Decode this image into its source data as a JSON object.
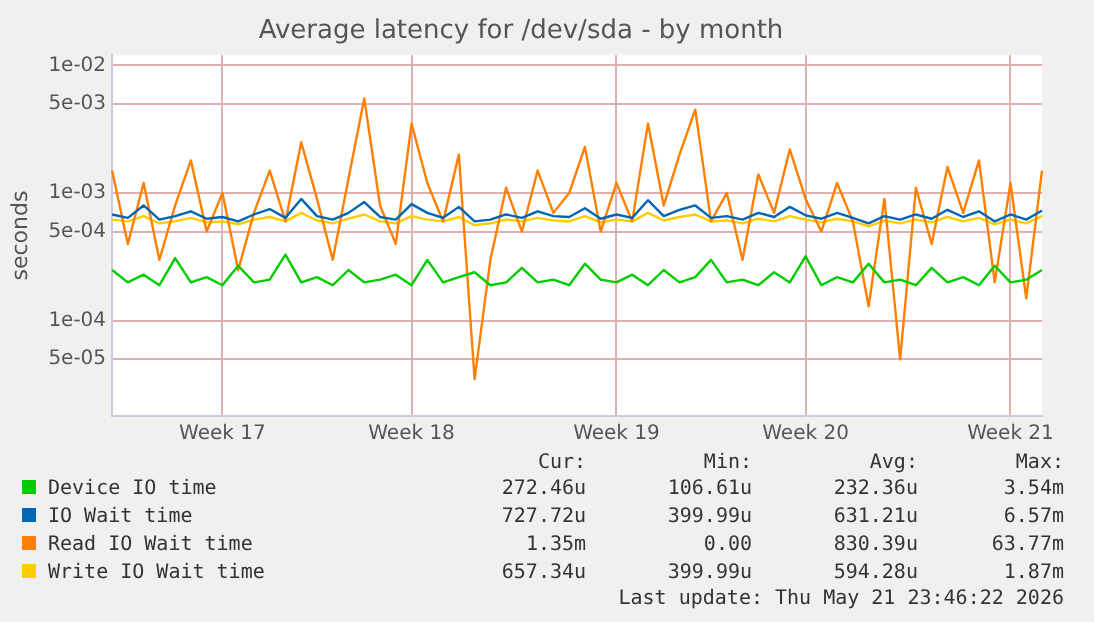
{
  "chart_data": {
    "type": "line",
    "title": "Average latency for /dev/sda - by month",
    "ylabel": "seconds",
    "log": "y",
    "grid": true,
    "legend": "bottom",
    "marker": "none",
    "line_style": "solid",
    "categories": [
      null,
      null,
      null,
      null,
      null,
      null,
      null,
      "Week 17",
      null,
      null,
      null,
      null,
      null,
      null,
      null,
      null,
      null,
      null,
      null,
      "Week 18",
      null,
      null,
      null,
      null,
      null,
      null,
      null,
      null,
      null,
      null,
      null,
      null,
      "Week 19",
      null,
      null,
      null,
      null,
      null,
      null,
      null,
      null,
      null,
      null,
      null,
      "Week 20",
      null,
      null,
      null,
      null,
      null,
      null,
      null,
      null,
      null,
      null,
      null,
      null,
      "Week 21",
      null,
      null
    ],
    "ylim": [
      1.8e-05,
      0.012
    ],
    "yticks": [
      {
        "value": 5e-05,
        "label": "5e-05"
      },
      {
        "value": 0.0001,
        "label": "1e-04"
      },
      {
        "value": 0.0005,
        "label": "5e-04"
      },
      {
        "value": 0.001,
        "label": "1e-03"
      },
      {
        "value": 0.005,
        "label": "5e-03"
      },
      {
        "value": 0.01,
        "label": "1e-02"
      }
    ],
    "series": [
      {
        "name": "Device IO time",
        "color": "#00cc00",
        "values": [
          0.00025,
          0.0002,
          0.00023,
          0.00019,
          0.00031,
          0.0002,
          0.00022,
          0.00019,
          0.00027,
          0.0002,
          0.00021,
          0.00033,
          0.0002,
          0.00022,
          0.00019,
          0.00025,
          0.0002,
          0.00021,
          0.00023,
          0.00019,
          0.0003,
          0.0002,
          0.00022,
          0.00024,
          0.00019,
          0.0002,
          0.00026,
          0.0002,
          0.00021,
          0.00019,
          0.00028,
          0.00021,
          0.0002,
          0.00023,
          0.00019,
          0.00025,
          0.0002,
          0.00022,
          0.0003,
          0.0002,
          0.00021,
          0.00019,
          0.00024,
          0.0002,
          0.00032,
          0.00019,
          0.00022,
          0.0002,
          0.00028,
          0.0002,
          0.00021,
          0.00019,
          0.00026,
          0.0002,
          0.00022,
          0.00019,
          0.00027,
          0.0002,
          0.00021,
          0.00025
        ]
      },
      {
        "name": "IO Wait time",
        "color": "#0066b3",
        "values": [
          0.00068,
          0.00064,
          0.0008,
          0.00062,
          0.00066,
          0.00072,
          0.00063,
          0.00065,
          0.0006,
          0.00068,
          0.00075,
          0.00064,
          0.0009,
          0.00066,
          0.00062,
          0.0007,
          0.00085,
          0.00065,
          0.00062,
          0.00082,
          0.0007,
          0.00064,
          0.00078,
          0.0006,
          0.00062,
          0.00068,
          0.00064,
          0.00072,
          0.00066,
          0.00065,
          0.00076,
          0.00063,
          0.00068,
          0.00064,
          0.00088,
          0.00066,
          0.00074,
          0.0008,
          0.00064,
          0.00066,
          0.00062,
          0.0007,
          0.00065,
          0.00078,
          0.00067,
          0.00063,
          0.0007,
          0.00064,
          0.00058,
          0.00066,
          0.00062,
          0.00068,
          0.00063,
          0.00074,
          0.00065,
          0.00072,
          0.0006,
          0.00068,
          0.00062,
          0.00073
        ]
      },
      {
        "name": "Read IO Wait time",
        "color": "#ff8000",
        "values": [
          0.0015,
          0.0004,
          0.0012,
          0.0003,
          0.0008,
          0.0018,
          0.0005,
          0.001,
          0.00025,
          0.0007,
          0.0015,
          0.0006,
          0.0025,
          0.0009,
          0.0003,
          0.0013,
          0.0055,
          0.0008,
          0.0004,
          0.0035,
          0.0012,
          0.0006,
          0.002,
          3.5e-05,
          0.0003,
          0.0011,
          0.0005,
          0.0015,
          0.0007,
          0.001,
          0.0023,
          0.0005,
          0.0012,
          0.0006,
          0.0035,
          0.0008,
          0.002,
          0.0045,
          0.0006,
          0.001,
          0.0003,
          0.0014,
          0.0007,
          0.0022,
          0.0009,
          0.0005,
          0.0012,
          0.0006,
          0.00013,
          0.0009,
          5e-05,
          0.0011,
          0.0004,
          0.0016,
          0.0007,
          0.0018,
          0.0002,
          0.0012,
          0.00015,
          0.0015
        ]
      },
      {
        "name": "Write IO Wait time",
        "color": "#ffcc00",
        "values": [
          0.00062,
          0.0006,
          0.00066,
          0.00058,
          0.0006,
          0.00064,
          0.00059,
          0.0006,
          0.00057,
          0.00062,
          0.00065,
          0.0006,
          0.0007,
          0.00061,
          0.00058,
          0.00063,
          0.00068,
          0.0006,
          0.00058,
          0.00066,
          0.00062,
          0.0006,
          0.00065,
          0.00056,
          0.00058,
          0.00062,
          0.0006,
          0.00064,
          0.00061,
          0.0006,
          0.00066,
          0.00059,
          0.00062,
          0.0006,
          0.0007,
          0.00061,
          0.00065,
          0.00068,
          0.0006,
          0.00061,
          0.00058,
          0.00063,
          0.0006,
          0.00066,
          0.00062,
          0.00059,
          0.00063,
          0.0006,
          0.00055,
          0.00061,
          0.00058,
          0.00062,
          0.00059,
          0.00065,
          0.0006,
          0.00064,
          0.00057,
          0.00062,
          0.00058,
          0.00066
        ]
      }
    ],
    "annotations": [
      "Cur:",
      "Min:",
      "Avg:",
      "Max:",
      "272.46u",
      "106.61u",
      "232.36u",
      "3.54m",
      "727.72u",
      "399.99u",
      "631.21u",
      "6.57m",
      "1.35m",
      "0.00",
      "830.39u",
      "63.77m",
      "657.34u",
      "399.99u",
      "594.28u",
      "1.87m",
      "Last update: Thu May 21 23:46:22 2026"
    ]
  }
}
